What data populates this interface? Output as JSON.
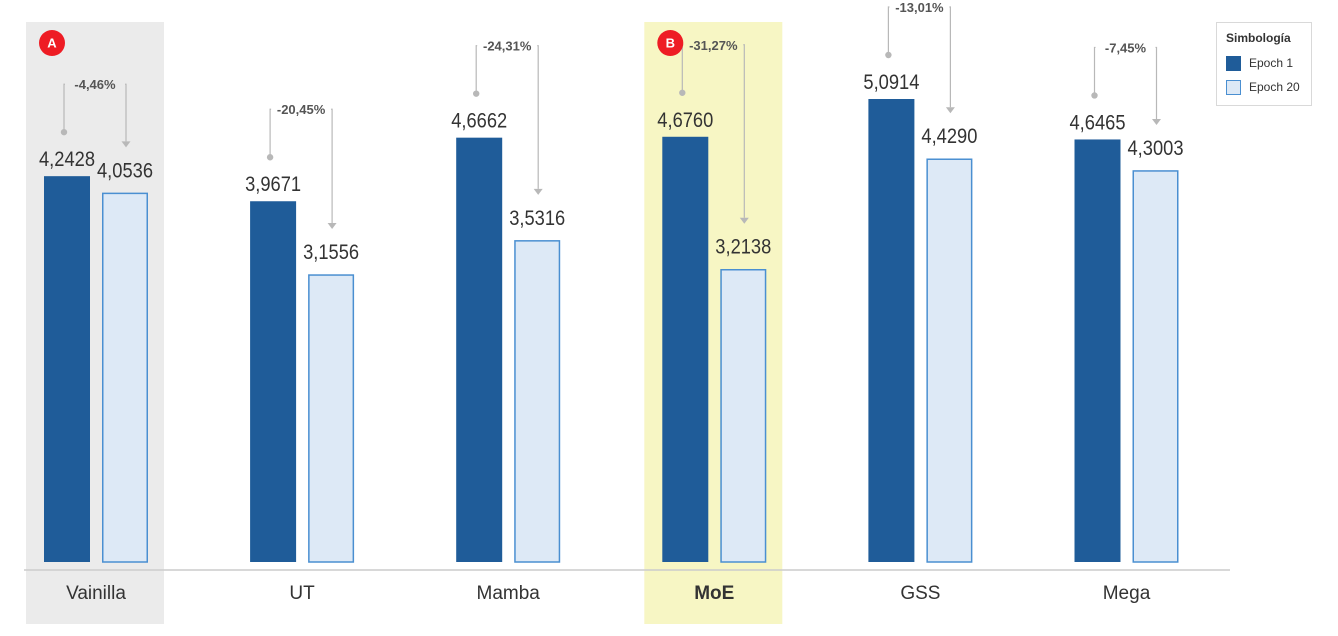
{
  "colors": {
    "epoch1_fill": "#1f5c99",
    "epoch20_fill": "#dde9f6",
    "epoch20_stroke": "#4a8fd1",
    "highlight_a": "#ebebeb",
    "highlight_b": "#f7f6c4",
    "badge": "#ee1c24",
    "connector": "#b8b8b8",
    "axis": "#cccccc",
    "text": "#333333"
  },
  "legend": {
    "title": "Simbología",
    "items": [
      {
        "label": "Epoch 1",
        "color": "#1f5c99",
        "stroke": "#1f5c99"
      },
      {
        "label": "Epoch 20",
        "color": "#dde9f6",
        "stroke": "#4a8fd1"
      }
    ]
  },
  "chart_data": {
    "type": "bar",
    "categories": [
      "Vainilla",
      "UT",
      "Mamba",
      "MoE",
      "GSS",
      "Mega"
    ],
    "series": [
      {
        "name": "Epoch 1",
        "values": [
          4.2428,
          3.9671,
          4.6662,
          4.676,
          5.0914,
          4.6465
        ]
      },
      {
        "name": "Epoch 20",
        "values": [
          4.0536,
          3.1556,
          3.5316,
          3.2138,
          4.429,
          4.3003
        ]
      }
    ],
    "value_labels": {
      "epoch1": [
        "4,2428",
        "3,9671",
        "4,6662",
        "4,6760",
        "5,0914",
        "4,6465"
      ],
      "epoch20": [
        "4,0536",
        "3,1556",
        "3,5316",
        "3,2138",
        "4,4290",
        "4,3003"
      ]
    },
    "change_labels": [
      "-4,46%",
      "-20,45%",
      "-24,31%",
      "-31,27%",
      "-13,01%",
      "-7,45%"
    ],
    "highlights": [
      {
        "category": "Vainilla",
        "badge": "A",
        "style": "gray"
      },
      {
        "category": "MoE",
        "badge": "B",
        "style": "yellow",
        "bold_label": true
      }
    ],
    "ylim": [
      0,
      5.0914
    ],
    "grid": false,
    "legend_position": "top-right",
    "title": "",
    "xlabel": "",
    "ylabel": ""
  }
}
